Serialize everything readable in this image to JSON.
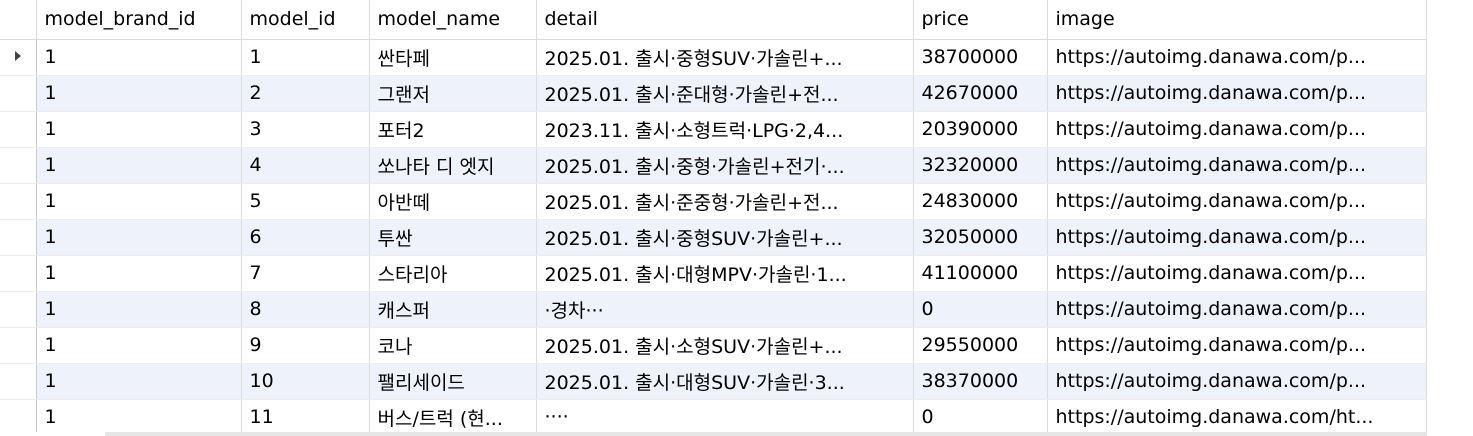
{
  "grid": {
    "columns": [
      "model_brand_id",
      "model_id",
      "model_name",
      "detail",
      "price",
      "image"
    ],
    "current_row_marker": "caret-right-icon",
    "rows": [
      {
        "model_brand_id": "1",
        "model_id": "1",
        "model_name": "싼타페",
        "detail": "2025.01. 출시·중형SUV·가솔린+...",
        "price": "38700000",
        "image": "https://autoimg.danawa.com/p..."
      },
      {
        "model_brand_id": "1",
        "model_id": "2",
        "model_name": "그랜저",
        "detail": "2025.01. 출시·준대형·가솔린+전...",
        "price": "42670000",
        "image": "https://autoimg.danawa.com/p..."
      },
      {
        "model_brand_id": "1",
        "model_id": "3",
        "model_name": "포터2",
        "detail": "2023.11. 출시·소형트럭·LPG·2,4...",
        "price": "20390000",
        "image": "https://autoimg.danawa.com/p..."
      },
      {
        "model_brand_id": "1",
        "model_id": "4",
        "model_name": "쏘나타 디 엣지",
        "detail": "2025.01. 출시·중형·가솔린+전기·...",
        "price": "32320000",
        "image": "https://autoimg.danawa.com/p..."
      },
      {
        "model_brand_id": "1",
        "model_id": "5",
        "model_name": "아반떼",
        "detail": "2025.01. 출시·준중형·가솔린+전...",
        "price": "24830000",
        "image": "https://autoimg.danawa.com/p..."
      },
      {
        "model_brand_id": "1",
        "model_id": "6",
        "model_name": "투싼",
        "detail": "2025.01. 출시·중형SUV·가솔린+...",
        "price": "32050000",
        "image": "https://autoimg.danawa.com/p..."
      },
      {
        "model_brand_id": "1",
        "model_id": "7",
        "model_name": "스타리아",
        "detail": "2025.01. 출시·대형MPV·가솔린·1...",
        "price": "41100000",
        "image": "https://autoimg.danawa.com/p..."
      },
      {
        "model_brand_id": "1",
        "model_id": "8",
        "model_name": "캐스퍼",
        "detail": "·경차···",
        "price": "0",
        "image": "https://autoimg.danawa.com/p..."
      },
      {
        "model_brand_id": "1",
        "model_id": "9",
        "model_name": "코나",
        "detail": "2025.01. 출시·소형SUV·가솔린+...",
        "price": "29550000",
        "image": "https://autoimg.danawa.com/p..."
      },
      {
        "model_brand_id": "1",
        "model_id": "10",
        "model_name": "팰리세이드",
        "detail": "2025.01. 출시·대형SUV·가솔린·3...",
        "price": "38370000",
        "image": "https://autoimg.danawa.com/p..."
      },
      {
        "model_brand_id": "1",
        "model_id": "11",
        "model_name": "버스/트럭 (현...",
        "detail": "····",
        "price": "0",
        "image": "https://autoimg.danawa.com/ht..."
      }
    ]
  }
}
